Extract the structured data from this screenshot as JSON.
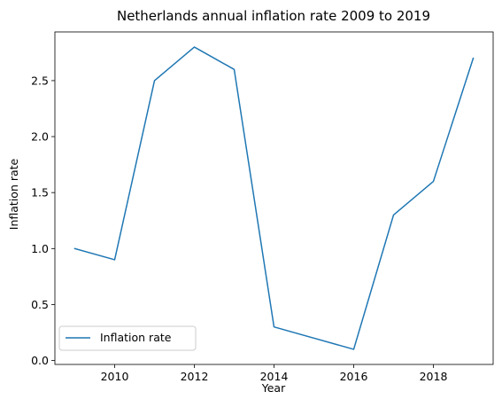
{
  "chart_data": {
    "type": "line",
    "title": "Netherlands annual inflation rate 2009 to 2019",
    "xlabel": "Year",
    "ylabel": "Inflation rate",
    "x": [
      2009,
      2010,
      2011,
      2012,
      2013,
      2014,
      2015,
      2016,
      2017,
      2018,
      2019
    ],
    "series": [
      {
        "name": "Inflation rate",
        "values": [
          1.0,
          0.9,
          2.5,
          2.8,
          2.6,
          0.3,
          0.2,
          0.1,
          1.3,
          1.6,
          2.7
        ],
        "color": "#1f77b4"
      }
    ],
    "xlim": [
      2008.5,
      2019.5
    ],
    "ylim": [
      -0.035,
      2.935
    ],
    "xticks": [
      2010,
      2012,
      2014,
      2016,
      2018
    ],
    "xtick_labels": [
      "2010",
      "2012",
      "2014",
      "2016",
      "2018"
    ],
    "yticks": [
      0.0,
      0.5,
      1.0,
      1.5,
      2.0,
      2.5
    ],
    "ytick_labels": [
      "0.0",
      "0.5",
      "1.0",
      "1.5",
      "2.0",
      "2.5"
    ],
    "grid": false,
    "legend_position": "lower-left"
  }
}
